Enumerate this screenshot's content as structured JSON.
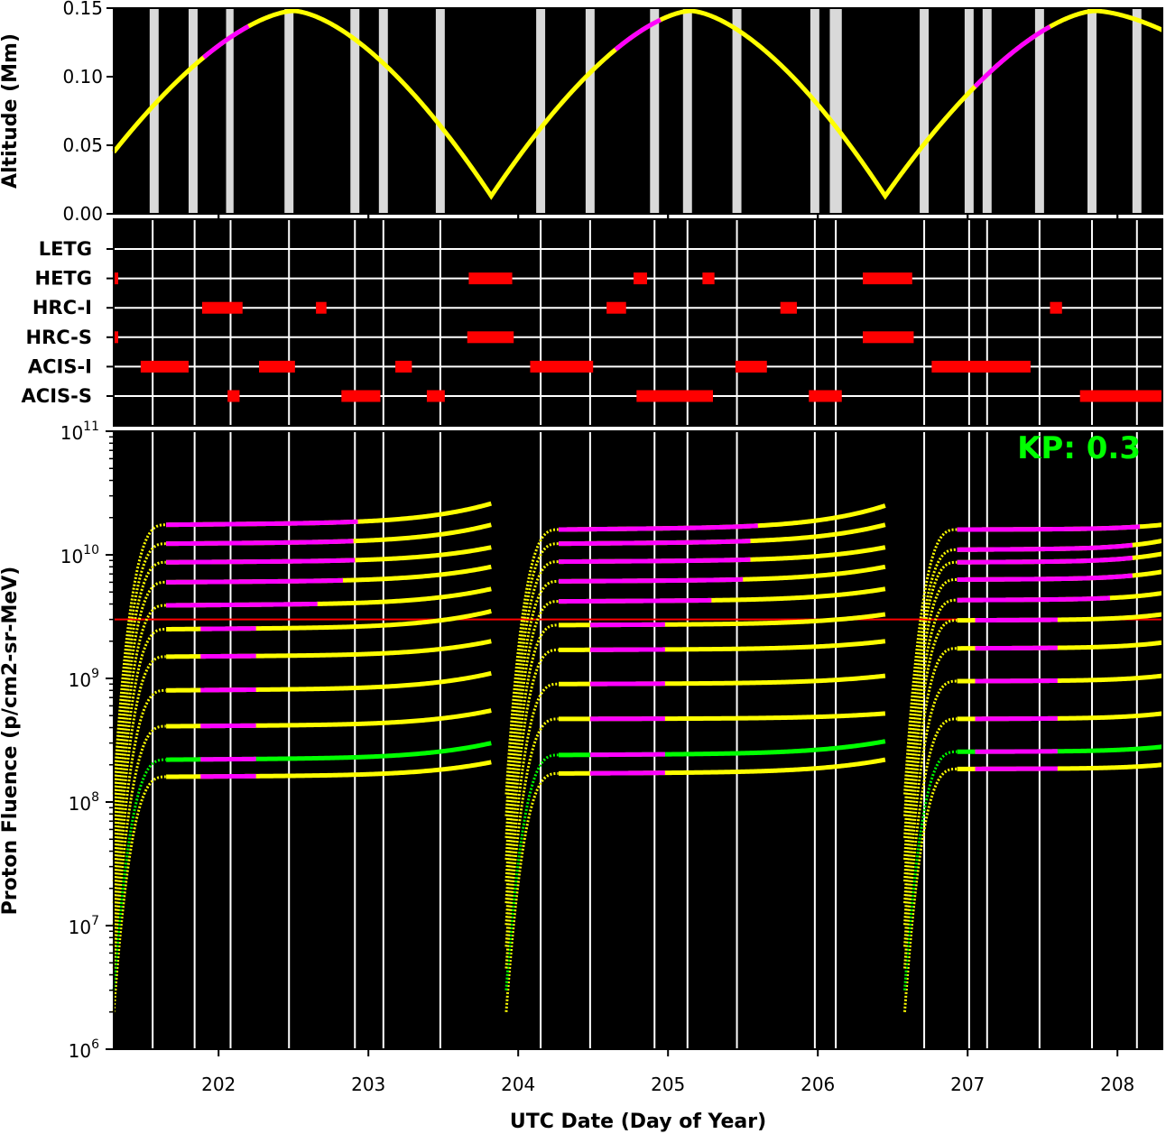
{
  "colors": {
    "background": "#000000",
    "orbit": "#ffff00",
    "orbit_highlight": "#ff00ff",
    "radiation_zone": "#d9d9d9",
    "schedule_bar": "#ff0000",
    "threshold": "#ff0000",
    "fluence_main": "#ffff00",
    "fluence_highlight": "#ff00ff",
    "fluence_kp_channel": "#00ff00",
    "kp_text": "#00ff00"
  },
  "annotation": {
    "kp_text": "KP: 0.3"
  },
  "chart_data": [
    {
      "type": "line",
      "name": "altitude",
      "ylabel": "Altitude (Mm)",
      "xlim": [
        201.3,
        208.3
      ],
      "ylim": [
        0,
        0.15
      ],
      "yticks": [
        0,
        0.05,
        0.1,
        0.15
      ],
      "ytick_labels": [
        "0.00",
        "0.05",
        "0.10",
        "0.15"
      ],
      "grid": false,
      "perigees": [
        203.82,
        206.45
      ],
      "apogees": [
        202.5,
        205.15,
        207.85
      ],
      "apogee_altitude": 0.148,
      "perigee_altitude": 0.013,
      "start_altitude": 0.045,
      "highlight_segments": [
        [
          201.9,
          202.2
        ],
        [
          204.65,
          204.95
        ],
        [
          207.05,
          207.55
        ]
      ],
      "radiation_zone_bands": [
        [
          201.54,
          201.6
        ],
        [
          201.8,
          201.86
        ],
        [
          202.05,
          202.1
        ],
        [
          202.44,
          202.5
        ],
        [
          202.88,
          202.94
        ],
        [
          203.07,
          203.13
        ],
        [
          203.45,
          203.51
        ],
        [
          204.12,
          204.18
        ],
        [
          204.45,
          204.51
        ],
        [
          204.88,
          204.94
        ],
        [
          205.1,
          205.16
        ],
        [
          205.43,
          205.49
        ],
        [
          205.95,
          206.01
        ],
        [
          206.08,
          206.16
        ],
        [
          206.68,
          206.74
        ],
        [
          206.98,
          207.04
        ],
        [
          207.1,
          207.16
        ],
        [
          207.45,
          207.51
        ],
        [
          207.8,
          207.86
        ],
        [
          208.1,
          208.16
        ]
      ]
    },
    {
      "type": "bar",
      "name": "instrument_schedule",
      "categories": [
        "LETG",
        "HETG",
        "HRC-I",
        "HRC-S",
        "ACIS-I",
        "ACIS-S"
      ],
      "xlim": [
        201.3,
        208.3
      ],
      "intervals": {
        "LETG": [],
        "HETG": [
          [
            201.3,
            201.33
          ],
          [
            203.67,
            203.96
          ],
          [
            204.77,
            204.86
          ],
          [
            205.23,
            205.31
          ],
          [
            206.3,
            206.63
          ]
        ],
        "HRC-I": [
          [
            201.89,
            202.16
          ],
          [
            202.65,
            202.72
          ],
          [
            204.59,
            204.72
          ],
          [
            205.75,
            205.86
          ],
          [
            207.55,
            207.63
          ]
        ],
        "HRC-S": [
          [
            201.3,
            201.33
          ],
          [
            203.66,
            203.97
          ],
          [
            206.3,
            206.64
          ]
        ],
        "ACIS-I": [
          [
            201.48,
            201.8
          ],
          [
            202.27,
            202.51
          ],
          [
            203.18,
            203.29
          ],
          [
            204.08,
            204.5
          ],
          [
            205.45,
            205.66
          ],
          [
            206.76,
            207.42
          ]
        ],
        "ACIS-S": [
          [
            202.06,
            202.14
          ],
          [
            202.82,
            203.08
          ],
          [
            203.39,
            203.51
          ],
          [
            204.79,
            205.3
          ],
          [
            205.94,
            206.16
          ],
          [
            207.75,
            208.3
          ]
        ]
      },
      "vertical_lines": [
        201.56,
        201.84,
        202.08,
        202.47,
        202.91,
        203.1,
        203.48,
        204.15,
        204.48,
        204.91,
        205.13,
        205.46,
        205.98,
        206.12,
        206.71,
        207.01,
        207.13,
        207.48,
        207.83,
        208.13
      ]
    },
    {
      "type": "scatter",
      "name": "proton_fluence",
      "xlabel": "UTC Date (Day of Year)",
      "ylabel": "Proton Fluence (p/cm2-sr-MeV)",
      "yscale": "log",
      "xlim": [
        201.3,
        208.3
      ],
      "ylim": [
        1000000,
        100000000000
      ],
      "xticks": [
        202,
        203,
        204,
        205,
        206,
        207,
        208
      ],
      "xtick_labels": [
        "202",
        "203",
        "204",
        "205",
        "206",
        "207",
        "208"
      ],
      "yticks": [
        1000000,
        10000000,
        100000000,
        1000000000,
        10000000000,
        100000000000
      ],
      "ytick_mantissa": "10",
      "ytick_exponents": [
        "6",
        "7",
        "8",
        "9",
        "10",
        "11"
      ],
      "threshold": 3000000000,
      "kp_channel_index": 1,
      "segments": [
        {
          "x_start": 201.3,
          "x_end": 203.82,
          "final_values": [
            210000000,
            300000000,
            550000000,
            1100000000,
            2000000000,
            3500000000,
            5300000000,
            8000000000,
            11500000000,
            17500000000,
            26000000000
          ],
          "plateau_values": [
            160000000,
            220000000,
            410000000,
            800000000,
            1500000000,
            2500000000,
            3900000000,
            6000000000,
            8700000000,
            12300000000,
            17500000000
          ],
          "highlight_ranges": [
            [
              201.88,
              202.25
            ],
            [
              201.88,
              202.25
            ],
            [
              201.88,
              202.25
            ],
            [
              201.88,
              202.25
            ],
            [
              201.88,
              202.25
            ],
            [
              201.88,
              202.25
            ],
            [
              201.58,
              202.66
            ],
            [
              201.5,
              202.83
            ],
            [
              201.44,
              202.91
            ],
            [
              201.43,
              202.9
            ],
            [
              201.42,
              202.93
            ]
          ]
        },
        {
          "x_start": 203.92,
          "x_end": 206.45,
          "final_values": [
            220000000,
            310000000,
            520000000,
            1050000000,
            2000000000,
            3300000000,
            5300000000,
            8000000000,
            11500000000,
            17500000000,
            25000000000
          ],
          "plateau_values": [
            170000000,
            240000000,
            470000000,
            900000000,
            1700000000,
            2700000000,
            4200000000,
            6100000000,
            8800000000,
            12300000000,
            16000000000
          ],
          "highlight_ranges": [
            [
              204.48,
              204.98
            ],
            [
              204.48,
              204.98
            ],
            [
              204.48,
              204.98
            ],
            [
              204.48,
              204.98
            ],
            [
              204.48,
              204.98
            ],
            [
              204.48,
              204.98
            ],
            [
              204.14,
              205.29
            ],
            [
              204.1,
              205.5
            ],
            [
              204.08,
              205.55
            ],
            [
              204.07,
              205.55
            ],
            [
              204.05,
              205.6
            ]
          ]
        },
        {
          "x_start": 206.58,
          "x_end": 208.3,
          "final_values": [
            200000000,
            280000000,
            520000000,
            1050000000,
            1950000000,
            3300000000,
            4900000000,
            7300000000,
            10200000000,
            13000000000,
            17500000000
          ],
          "plateau_values": [
            185000000,
            255000000,
            470000000,
            950000000,
            1750000000,
            2950000000,
            4300000000,
            6300000000,
            8700000000,
            11000000000,
            16000000000
          ],
          "highlight_ranges": [
            [
              207.05,
              207.6
            ],
            [
              207.05,
              207.6
            ],
            [
              207.05,
              207.6
            ],
            [
              207.05,
              207.6
            ],
            [
              207.05,
              207.6
            ],
            [
              207.05,
              207.6
            ],
            [
              206.85,
              207.95
            ],
            [
              206.8,
              208.1
            ],
            [
              206.78,
              208.1
            ],
            [
              206.76,
              208.1
            ],
            [
              206.75,
              208.15
            ]
          ]
        }
      ]
    }
  ]
}
